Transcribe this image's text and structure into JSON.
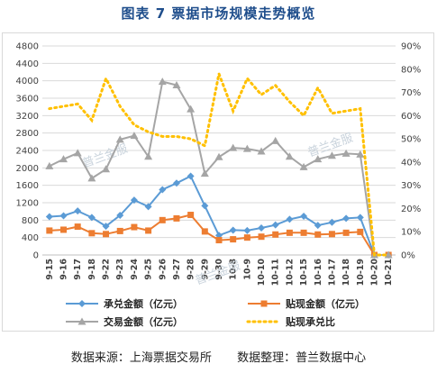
{
  "header": {
    "title": "图表 7  票据市场规模走势概览"
  },
  "footer": {
    "source": "数据来源：上海票据交易所",
    "compiler": "数据整理：普兰数据中心"
  },
  "watermark": {
    "text": "普兰金服"
  },
  "chart_data": {
    "type": "line",
    "categories": [
      "9-15",
      "9-16",
      "9-17",
      "9-18",
      "9-22",
      "9-23",
      "9-24",
      "9-25",
      "9-26",
      "9-27",
      "9-28",
      "9-29",
      "9-30",
      "10-8",
      "10-9",
      "10-10",
      "10-11",
      "10-12",
      "10-15",
      "10-16",
      "10-17",
      "10-18",
      "10-19",
      "10-20",
      "10-21"
    ],
    "y_left": {
      "min": 0,
      "max": 4800,
      "ticks": [
        0,
        400,
        800,
        1200,
        1600,
        2000,
        2400,
        2800,
        3200,
        3600,
        4000,
        4400,
        4800
      ]
    },
    "y_right": {
      "min": 0,
      "max": 90,
      "ticks": [
        "0%",
        "10%",
        "20%",
        "30%",
        "40%",
        "50%",
        "60%",
        "70%",
        "80%",
        "90%"
      ]
    },
    "grid": true,
    "legend_position": "bottom",
    "series": [
      {
        "name": "承兑金额（亿元）",
        "axis": "left",
        "color": "#5b9bd5",
        "marker": "diamond",
        "values": [
          880,
          900,
          1010,
          860,
          660,
          910,
          1260,
          1110,
          1500,
          1650,
          1810,
          1130,
          450,
          570,
          560,
          620,
          690,
          820,
          890,
          680,
          750,
          840,
          860,
          0,
          0
        ]
      },
      {
        "name": "贴现金额（亿元）",
        "axis": "left",
        "color": "#ed7d31",
        "marker": "square",
        "values": [
          560,
          580,
          650,
          500,
          480,
          550,
          640,
          560,
          800,
          840,
          920,
          540,
          340,
          360,
          400,
          420,
          470,
          510,
          510,
          470,
          480,
          510,
          530,
          0,
          0
        ]
      },
      {
        "name": "交易金额（亿元）",
        "axis": "left",
        "color": "#a5a5a5",
        "marker": "triangle",
        "values": [
          2040,
          2200,
          2340,
          1760,
          1970,
          2650,
          2740,
          2260,
          3980,
          3900,
          3350,
          1870,
          2250,
          2460,
          2440,
          2380,
          2620,
          2260,
          2020,
          2200,
          2280,
          2330,
          2310,
          0,
          0
        ]
      },
      {
        "name": "贴现承兑比",
        "axis": "right",
        "color": "#ffc000",
        "marker": "dotted",
        "values": [
          63,
          64,
          65,
          58,
          76,
          64,
          56,
          53,
          51,
          51,
          50,
          47,
          78,
          62,
          76,
          69,
          73,
          66,
          60,
          72,
          61,
          62,
          63,
          0,
          0
        ]
      }
    ]
  }
}
